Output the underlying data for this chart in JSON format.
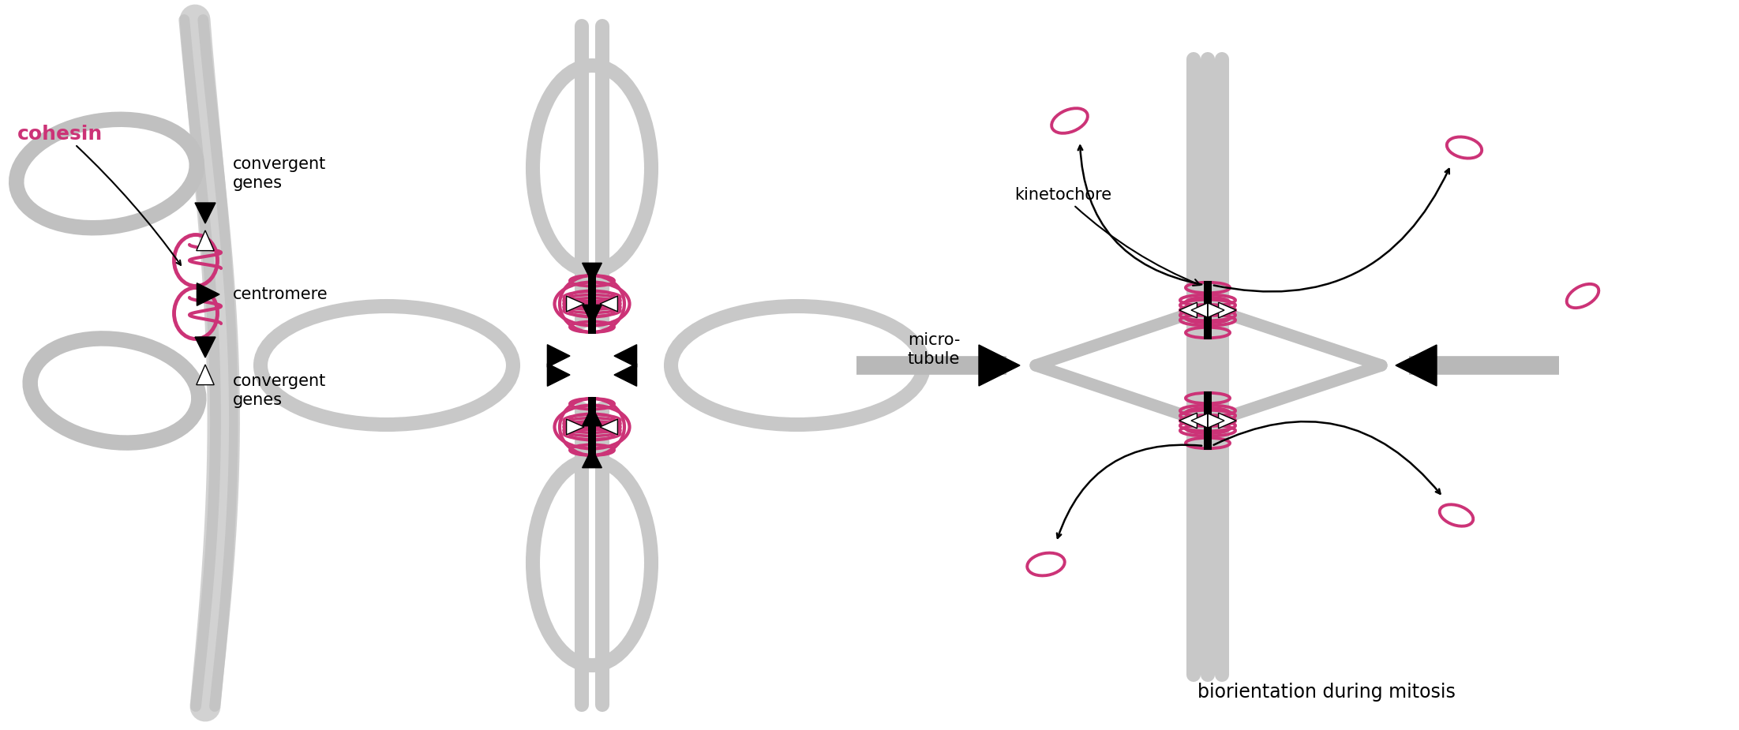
{
  "bg_color": "#ffffff",
  "pink": "#cc3377",
  "chr_color": "#c0c0c0",
  "chr_lw": 30,
  "black": "#111111",
  "title": "biorientation during mitosis",
  "cohesin_label": "cohesin",
  "centromere_label": "centromere",
  "conv_genes": "convergent\ngenes",
  "kinetochore_label": "kinetochore",
  "microtubule_label": "micro-\ntubule",
  "label_fs": 15,
  "title_fs": 17,
  "pink_label_fs": 18,
  "p1cx": 2.6,
  "p1cy": 4.62,
  "p2cx": 7.5,
  "p2cy": 4.62,
  "p3cx": 15.3,
  "p3cy": 4.62
}
